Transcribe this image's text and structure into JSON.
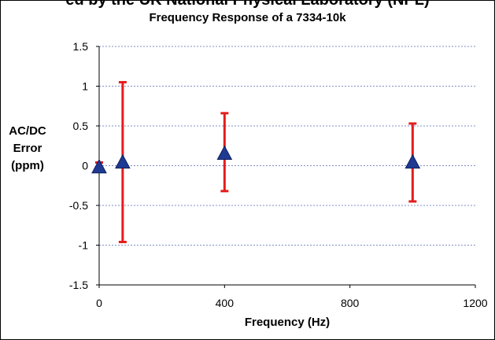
{
  "chart_data": {
    "type": "scatter",
    "title": "ed by the UK National Physical Laboratory (NPL)",
    "subtitle": "Frequency Response of a 7334-10k",
    "xlabel": "Frequency (Hz)",
    "ylabel": [
      "AC/DC",
      "Error",
      "(ppm)"
    ],
    "xlim": [
      0,
      1200
    ],
    "ylim": [
      -1.5,
      1.5
    ],
    "xticks": [
      0,
      400,
      800,
      1200
    ],
    "yticks": [
      1.5,
      1,
      0.5,
      0,
      -0.5,
      -1,
      -1.5
    ],
    "ytick_labels": [
      "1.5",
      "1",
      "0.5",
      "0",
      "-0.5",
      "-1",
      "-1.5"
    ],
    "xtick_labels": [
      "0",
      "400",
      "800",
      "1200"
    ],
    "grid": "horizontal dashed",
    "series": [
      {
        "marker": "triangle",
        "color": "#1f3a93",
        "errorbar_color": "#e51c1c",
        "points": [
          {
            "x": 0,
            "y": -0.02,
            "err_low": -0.04,
            "err_high": 0.04
          },
          {
            "x": 75,
            "y": 0.04,
            "err_low": -0.96,
            "err_high": 1.05
          },
          {
            "x": 400,
            "y": 0.15,
            "err_low": -0.32,
            "err_high": 0.66
          },
          {
            "x": 1000,
            "y": 0.04,
            "err_low": -0.45,
            "err_high": 0.53
          }
        ]
      }
    ]
  }
}
